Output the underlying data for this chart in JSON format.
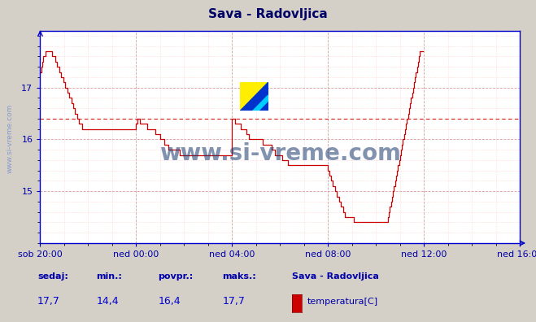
{
  "title": "Sava - Radovljica",
  "title_color": "#000066",
  "bg_color": "#d4d0c8",
  "plot_bg_color": "#ffffff",
  "line_color": "#cc0000",
  "grid_major_color": "#cc8888",
  "grid_minor_color": "#ffaaaa",
  "axis_color": "#0000cc",
  "avg_line_color": "#cc0000",
  "avg_line_value": 16.4,
  "ylabel_color": "#0000aa",
  "xlabel_color": "#0000aa",
  "watermark_color": "#1a3a6e",
  "yticks": [
    15,
    16,
    17
  ],
  "ylim": [
    14.0,
    18.1
  ],
  "xtick_labels": [
    "sob 20:00",
    "ned 00:00",
    "ned 04:00",
    "ned 08:00",
    "ned 12:00",
    "ned 16:00"
  ],
  "xtick_positions": [
    0,
    96,
    192,
    288,
    384,
    480
  ],
  "total_points": 480,
  "sedaj": "17,7",
  "min_val": "14,4",
  "povpr": "16,4",
  "maks": "17,7",
  "legend_station": "Sava - Radovljica",
  "legend_series": "temperatura[C]",
  "watermark": "www.si-vreme.com",
  "left_label": "www.si-vreme.com",
  "temperature_data": [
    17.3,
    17.4,
    17.5,
    17.6,
    17.6,
    17.7,
    17.7,
    17.7,
    17.7,
    17.7,
    17.7,
    17.7,
    17.6,
    17.6,
    17.6,
    17.5,
    17.5,
    17.4,
    17.4,
    17.3,
    17.3,
    17.2,
    17.2,
    17.1,
    17.1,
    17.0,
    17.0,
    16.9,
    16.9,
    16.8,
    16.8,
    16.7,
    16.7,
    16.6,
    16.6,
    16.5,
    16.5,
    16.4,
    16.4,
    16.3,
    16.3,
    16.3,
    16.2,
    16.2,
    16.2,
    16.2,
    16.2,
    16.2,
    16.2,
    16.2,
    16.2,
    16.2,
    16.2,
    16.2,
    16.2,
    16.2,
    16.2,
    16.2,
    16.2,
    16.2,
    16.2,
    16.2,
    16.2,
    16.2,
    16.2,
    16.2,
    16.2,
    16.2,
    16.2,
    16.2,
    16.2,
    16.2,
    16.2,
    16.2,
    16.2,
    16.2,
    16.2,
    16.2,
    16.2,
    16.2,
    16.2,
    16.2,
    16.2,
    16.2,
    16.2,
    16.2,
    16.2,
    16.2,
    16.2,
    16.2,
    16.2,
    16.2,
    16.2,
    16.2,
    16.2,
    16.2,
    16.3,
    16.4,
    16.4,
    16.4,
    16.3,
    16.3,
    16.3,
    16.3,
    16.3,
    16.3,
    16.3,
    16.2,
    16.2,
    16.2,
    16.2,
    16.2,
    16.2,
    16.2,
    16.2,
    16.1,
    16.1,
    16.1,
    16.1,
    16.1,
    16.0,
    16.0,
    16.0,
    16.0,
    15.9,
    15.9,
    15.9,
    15.9,
    15.8,
    15.8,
    15.8,
    15.8,
    15.8,
    15.8,
    15.8,
    15.8,
    15.8,
    15.8,
    15.8,
    15.8,
    15.7,
    15.7,
    15.7,
    15.7,
    15.7,
    15.7,
    15.7,
    15.7,
    15.7,
    15.7,
    15.7,
    15.7,
    15.7,
    15.7,
    15.7,
    15.7,
    15.7,
    15.7,
    15.7,
    15.7,
    15.7,
    15.7,
    15.7,
    15.7,
    15.7,
    15.7,
    15.7,
    15.7,
    15.7,
    15.7,
    15.7,
    15.7,
    15.7,
    15.7,
    15.7,
    15.7,
    15.7,
    15.7,
    15.7,
    15.7,
    15.7,
    15.7,
    15.7,
    15.7,
    15.7,
    15.7,
    15.7,
    15.7,
    15.7,
    15.7,
    15.7,
    15.7,
    16.4,
    16.4,
    16.4,
    16.3,
    16.3,
    16.3,
    16.3,
    16.3,
    16.3,
    16.2,
    16.2,
    16.2,
    16.2,
    16.2,
    16.1,
    16.1,
    16.1,
    16.0,
    16.0,
    16.0,
    16.0,
    16.0,
    16.0,
    16.0,
    16.0,
    16.0,
    16.0,
    16.0,
    16.0,
    16.0,
    16.0,
    15.9,
    15.9,
    15.9,
    15.9,
    15.9,
    15.9,
    15.9,
    15.9,
    15.9,
    15.8,
    15.8,
    15.8,
    15.7,
    15.7,
    15.7,
    15.7,
    15.7,
    15.7,
    15.7,
    15.6,
    15.6,
    15.6,
    15.6,
    15.6,
    15.6,
    15.5,
    15.5,
    15.5,
    15.5,
    15.5,
    15.5,
    15.5,
    15.5,
    15.5,
    15.5,
    15.5,
    15.5,
    15.5,
    15.5,
    15.5,
    15.5,
    15.5,
    15.5,
    15.5,
    15.5,
    15.5,
    15.5,
    15.5,
    15.5,
    15.5,
    15.5,
    15.5,
    15.5,
    15.5,
    15.5,
    15.5,
    15.5,
    15.5,
    15.5,
    15.5,
    15.5,
    15.5,
    15.5,
    15.5,
    15.5,
    15.4,
    15.3,
    15.3,
    15.2,
    15.2,
    15.1,
    15.1,
    15.0,
    15.0,
    14.9,
    14.9,
    14.8,
    14.8,
    14.7,
    14.7,
    14.6,
    14.6,
    14.5,
    14.5,
    14.5,
    14.5,
    14.5,
    14.5,
    14.5,
    14.5,
    14.5,
    14.4,
    14.4,
    14.4,
    14.4,
    14.4,
    14.4,
    14.4,
    14.4,
    14.4,
    14.4,
    14.4,
    14.4,
    14.4,
    14.4,
    14.4,
    14.4,
    14.4,
    14.4,
    14.4,
    14.4,
    14.4,
    14.4,
    14.4,
    14.4,
    14.4,
    14.4,
    14.4,
    14.4,
    14.4,
    14.4,
    14.4,
    14.4,
    14.4,
    14.4,
    14.5,
    14.6,
    14.7,
    14.8,
    14.9,
    15.0,
    15.1,
    15.2,
    15.3,
    15.4,
    15.5,
    15.6,
    15.7,
    15.8,
    15.9,
    16.0,
    16.1,
    16.2,
    16.3,
    16.4,
    16.5,
    16.6,
    16.7,
    16.8,
    16.9,
    17.0,
    17.1,
    17.2,
    17.3,
    17.4,
    17.5,
    17.6,
    17.7,
    17.7,
    17.7,
    17.7
  ]
}
